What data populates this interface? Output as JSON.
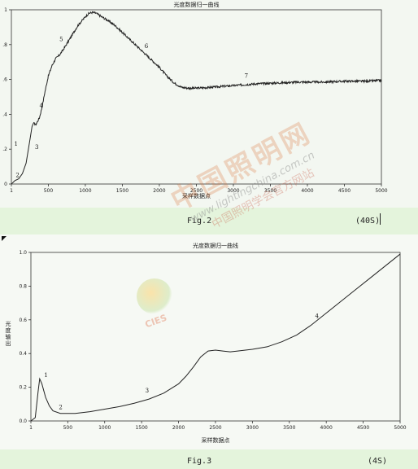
{
  "figures": [
    {
      "caption": "Fig.2",
      "note": "(40S)",
      "chart_data": {
        "type": "line",
        "title": "光度数据归一曲线",
        "xlabel": "采样数据点",
        "ylabel": "",
        "xlim": [
          1,
          5000
        ],
        "ylim": [
          0,
          1
        ],
        "x_ticks": [
          "1",
          "500",
          "1000",
          "1500",
          "2000",
          "2500",
          "3000",
          "3500",
          "4000",
          "4500",
          "5000"
        ],
        "y_ticks": [
          "0",
          ".2",
          ".4",
          ".6",
          ".8",
          "1"
        ],
        "grid": false,
        "series": [
          {
            "x": [
              1,
              50,
              100,
              150,
              200,
              250,
              280,
              300,
              330,
              380,
              420,
              450,
              500,
              550,
              600,
              650,
              700,
              800,
              900,
              1000,
              1050,
              1100,
              1150,
              1200,
              1300,
              1400,
              1500,
              1600,
              1700,
              1800,
              1900,
              2000,
              2100,
              2200,
              2300,
              2400,
              2500,
              2700,
              3000,
              3300,
              3600,
              3900,
              4200,
              4500,
              4800,
              5000
            ],
            "y": [
              0.0,
              0.02,
              0.03,
              0.06,
              0.12,
              0.25,
              0.33,
              0.35,
              0.34,
              0.38,
              0.45,
              0.52,
              0.62,
              0.68,
              0.72,
              0.74,
              0.77,
              0.84,
              0.91,
              0.96,
              0.98,
              0.985,
              0.98,
              0.965,
              0.94,
              0.91,
              0.87,
              0.83,
              0.79,
              0.75,
              0.71,
              0.67,
              0.62,
              0.58,
              0.555,
              0.55,
              0.55,
              0.555,
              0.565,
              0.575,
              0.58,
              0.585,
              0.585,
              0.59,
              0.59,
              0.595
            ]
          }
        ],
        "annotations": [
          {
            "text": "1",
            "x": 40,
            "y": 0.22
          },
          {
            "text": "2",
            "x": 60,
            "y": 0.04
          },
          {
            "text": "3",
            "x": 320,
            "y": 0.2
          },
          {
            "text": "4",
            "x": 380,
            "y": 0.44
          },
          {
            "text": "5",
            "x": 650,
            "y": 0.82
          },
          {
            "text": "6",
            "x": 1800,
            "y": 0.78
          },
          {
            "text": "7",
            "x": 3150,
            "y": 0.61
          }
        ]
      }
    },
    {
      "caption": "Fig.3",
      "note": "(4S)",
      "chart_data": {
        "type": "line",
        "title": "光度数据归一曲线",
        "xlabel": "采样数据点",
        "ylabel": "光度输出",
        "xlim": [
          1,
          5000
        ],
        "ylim": [
          0,
          1
        ],
        "x_ticks": [
          "1",
          "500",
          "1000",
          "1500",
          "2000",
          "2500",
          "3000",
          "3500",
          "4000",
          "4500",
          "5000"
        ],
        "y_ticks": [
          "0.0",
          "0.2",
          "0.4",
          "0.6",
          "0.8",
          "1.0"
        ],
        "grid": false,
        "series": [
          {
            "x": [
              1,
              60,
              100,
              120,
              150,
              200,
              250,
              300,
              400,
              600,
              800,
              1000,
              1200,
              1400,
              1600,
              1800,
              2000,
              2100,
              2200,
              2300,
              2400,
              2500,
              2600,
              2700,
              2800,
              3000,
              3200,
              3400,
              3600,
              3800,
              4000,
              4200,
              4400,
              4600,
              4800,
              5000
            ],
            "y": [
              0.0,
              0.02,
              0.18,
              0.25,
              0.22,
              0.14,
              0.09,
              0.06,
              0.045,
              0.045,
              0.055,
              0.07,
              0.085,
              0.105,
              0.13,
              0.165,
              0.22,
              0.265,
              0.32,
              0.38,
              0.415,
              0.42,
              0.415,
              0.41,
              0.415,
              0.425,
              0.44,
              0.47,
              0.51,
              0.57,
              0.64,
              0.71,
              0.78,
              0.85,
              0.92,
              0.99
            ]
          }
        ],
        "annotations": [
          {
            "text": "1",
            "x": 180,
            "y": 0.26
          },
          {
            "text": "2",
            "x": 380,
            "y": 0.07
          },
          {
            "text": "3",
            "x": 1550,
            "y": 0.17
          },
          {
            "text": "4",
            "x": 3850,
            "y": 0.61
          }
        ]
      }
    }
  ],
  "watermark": {
    "brand": "中国照明网",
    "url": "www.lightingchina.com.cn",
    "tagline": "中国照明学会官方网站",
    "logo": "CIES"
  }
}
